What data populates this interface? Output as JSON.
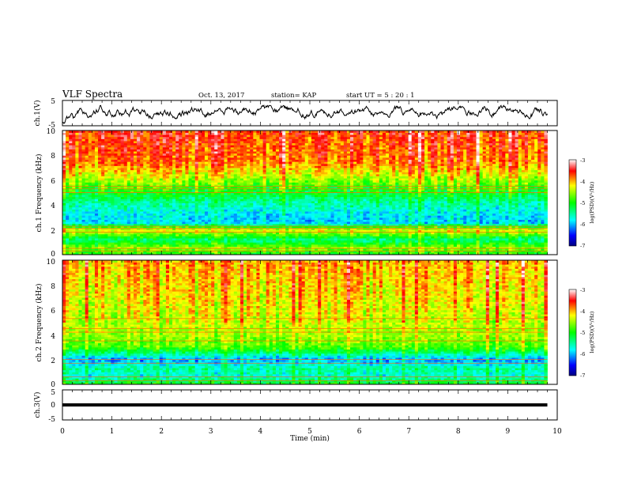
{
  "header": {
    "title": "VLF Spectra",
    "date": "Oct. 13, 2017",
    "station": "station= KAP",
    "start_ut": "start  UT =  5 : 20 : 1"
  },
  "chart_data": [
    {
      "id": "ch1-voltage",
      "type": "line",
      "ylabel": "ch.1(V)",
      "ylim": [
        -5,
        5
      ],
      "yticks": [
        "5",
        "-5"
      ],
      "xlim": [
        0,
        10
      ],
      "x_end": 9.8,
      "shown_range": [
        -4,
        3
      ],
      "color": "#000000"
    },
    {
      "id": "ch1-spectrogram",
      "type": "heatmap",
      "ylabel": "ch.1 Frequency (kHz)",
      "ylim": [
        0,
        10
      ],
      "yticks": [
        "0",
        "2",
        "4",
        "6",
        "8",
        "10"
      ],
      "xlim": [
        0,
        10
      ],
      "x_end": 9.8,
      "color_range": [
        -7,
        -3
      ],
      "colorbar_label": "log(PSD)(V²/Hz)",
      "colorbar_ticks": [
        "-3",
        "-4",
        "-5",
        "-6",
        "-7"
      ],
      "bands_khz_level": [
        [
          0,
          -5.0
        ],
        [
          0.6,
          -4.6
        ],
        [
          1.2,
          -5.4
        ],
        [
          2.0,
          -4.2
        ],
        [
          2.6,
          -5.9
        ],
        [
          3.3,
          -5.8
        ],
        [
          4.2,
          -5.5
        ],
        [
          5.5,
          -4.8
        ],
        [
          6.2,
          -4.4
        ],
        [
          7.5,
          -3.8
        ],
        [
          10,
          -3.6
        ]
      ],
      "lines_khz": [
        0.3,
        0.5,
        1.8,
        2.1,
        2.3,
        5.0,
        5.3,
        5.5
      ]
    },
    {
      "id": "ch2-spectrogram",
      "type": "heatmap",
      "ylabel": "ch.2 Frequency (kHz)",
      "ylim": [
        0,
        10
      ],
      "yticks": [
        "0",
        "2",
        "4",
        "6",
        "8",
        "10"
      ],
      "xlim": [
        0,
        10
      ],
      "x_end": 9.8,
      "color_range": [
        -7,
        -3
      ],
      "colorbar_label": "log(PSD)(V²/Hz)",
      "colorbar_ticks": [
        "-3",
        "-4",
        "-5",
        "-6",
        "-7"
      ],
      "bands_khz_level": [
        [
          0,
          -5.0
        ],
        [
          0.7,
          -5.7
        ],
        [
          1.3,
          -5.5
        ],
        [
          2.0,
          -6.1
        ],
        [
          3.0,
          -4.8
        ],
        [
          4.0,
          -4.5
        ],
        [
          6.0,
          -4.3
        ],
        [
          10,
          -4.0
        ]
      ],
      "lines_khz": [
        0.3,
        0.6,
        1.7,
        2.0,
        3.5,
        4.2,
        4.5,
        5.3
      ]
    },
    {
      "id": "ch3-voltage",
      "type": "line",
      "ylabel": "ch.3(V)",
      "ylim": [
        -5,
        5
      ],
      "yticks": [
        "5",
        "0",
        "-5"
      ],
      "xlim": [
        0,
        10
      ],
      "x_end": 9.8,
      "value": 0,
      "color": "#000000"
    }
  ],
  "x_axis": {
    "label": "Time (min)",
    "ticks": [
      "0",
      "1",
      "2",
      "3",
      "4",
      "5",
      "6",
      "7",
      "8",
      "9",
      "10"
    ]
  }
}
